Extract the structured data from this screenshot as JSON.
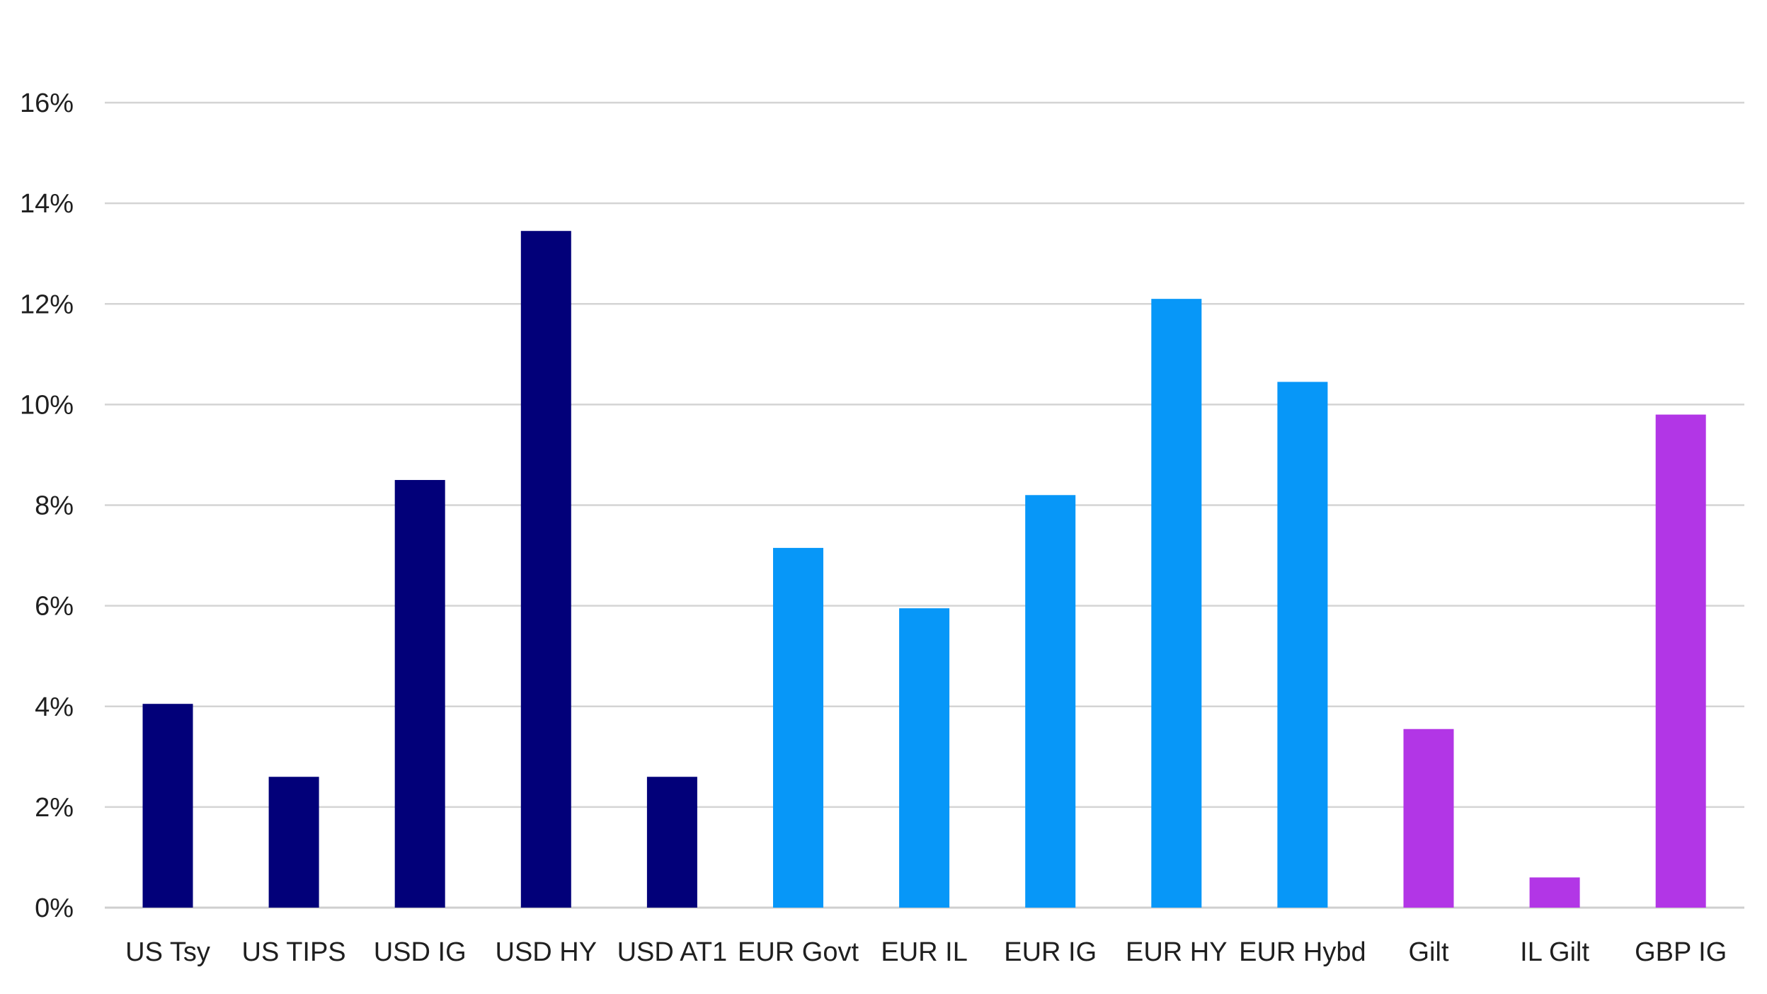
{
  "chart_data": {
    "type": "bar",
    "title": "",
    "xlabel": "",
    "ylabel": "",
    "ylim": [
      0,
      16
    ],
    "y_ticks": [
      "0%",
      "2%",
      "4%",
      "6%",
      "8%",
      "10%",
      "12%",
      "14%",
      "16%"
    ],
    "y_tick_values": [
      0,
      2,
      4,
      6,
      8,
      10,
      12,
      14,
      16
    ],
    "grid": true,
    "legend": "none",
    "categories": [
      "US Tsy",
      "US TIPS",
      "USD IG",
      "USD HY",
      "USD AT1",
      "EUR Govt",
      "EUR IL",
      "EUR IG",
      "EUR HY",
      "EUR Hybd",
      "Gilt",
      "IL Gilt",
      "GBP IG"
    ],
    "values": [
      4.05,
      2.6,
      8.5,
      13.45,
      2.6,
      7.15,
      5.95,
      8.2,
      12.1,
      10.45,
      3.55,
      0.6,
      9.8
    ],
    "bar_colors": [
      "#020079",
      "#020079",
      "#020079",
      "#020079",
      "#020079",
      "#0797F8",
      "#0797F8",
      "#0797F8",
      "#0797F8",
      "#0797F8",
      "#B236E6",
      "#B236E6",
      "#B236E6"
    ]
  }
}
